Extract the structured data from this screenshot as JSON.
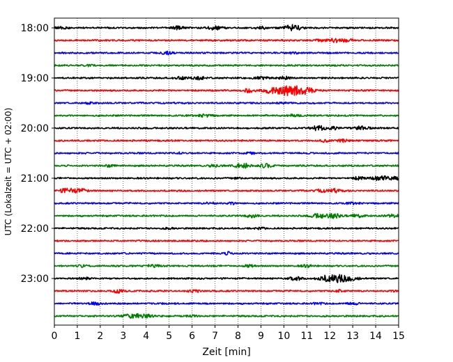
{
  "chart_data": {
    "type": "line",
    "title": "",
    "xlabel": "Zeit  [min]",
    "ylabel": "UTC (Lokalzeit = UTC + 02:00)",
    "xlim": [
      0,
      15
    ],
    "x_ticks": [
      0,
      1,
      2,
      3,
      4,
      5,
      6,
      7,
      8,
      9,
      10,
      11,
      12,
      13,
      14,
      15
    ],
    "x_tick_labels": [
      "0",
      "1",
      "2",
      "3",
      "4",
      "5",
      "6",
      "7",
      "8",
      "9",
      "10",
      "11",
      "12",
      "13",
      "14",
      "15"
    ],
    "y_ticks": [
      "18:00",
      "19:00",
      "20:00",
      "21:00",
      "22:00",
      "23:00"
    ],
    "grid": "vertical dotted lines at each minute",
    "trace_interval_minutes": 15,
    "color_cycle": [
      "#000000",
      "#ff0000",
      "#0000ff",
      "#008000"
    ],
    "series": [
      {
        "start": "18:00",
        "events": [
          [
            0.3,
            0.5
          ],
          [
            5.4,
            0.6
          ],
          [
            7.0,
            0.8
          ],
          [
            9.0,
            0.5
          ],
          [
            10.4,
            1.3
          ]
        ]
      },
      {
        "start": "18:15",
        "events": [
          [
            11.5,
            0.4
          ],
          [
            12.2,
            0.8
          ],
          [
            12.8,
            0.5
          ]
        ]
      },
      {
        "start": "18:30",
        "events": [
          [
            5.0,
            0.3
          ],
          [
            10.5,
            0.4
          ],
          [
            4.8,
            0.4
          ]
        ]
      },
      {
        "start": "18:45",
        "events": [
          [
            1.5,
            0.3
          ]
        ]
      },
      {
        "start": "19:00",
        "events": [
          [
            5.5,
            0.5
          ],
          [
            6.3,
            0.6
          ],
          [
            9.0,
            0.8
          ],
          [
            10.0,
            0.6
          ]
        ]
      },
      {
        "start": "19:15",
        "events": [
          [
            8.5,
            0.7
          ],
          [
            9.5,
            1.1
          ],
          [
            10.3,
            2.2
          ],
          [
            11.0,
            1.0
          ]
        ]
      },
      {
        "start": "19:30",
        "events": [
          [
            1.5,
            0.3
          ],
          [
            10.0,
            0.3
          ]
        ]
      },
      {
        "start": "19:45",
        "events": [
          [
            6.6,
            0.6
          ],
          [
            10.5,
            0.4
          ]
        ]
      },
      {
        "start": "20:00",
        "events": [
          [
            11.5,
            0.9
          ],
          [
            12.2,
            0.6
          ],
          [
            13.4,
            0.8
          ]
        ]
      },
      {
        "start": "20:15",
        "events": [
          [
            11.8,
            0.4
          ],
          [
            12.6,
            0.5
          ]
        ]
      },
      {
        "start": "20:30",
        "events": [
          [
            5.5,
            0.3
          ],
          [
            8.5,
            0.3
          ]
        ]
      },
      {
        "start": "20:45",
        "events": [
          [
            2.4,
            0.4
          ],
          [
            7.0,
            0.5
          ],
          [
            8.2,
            1.0
          ],
          [
            9.2,
            0.8
          ]
        ]
      },
      {
        "start": "21:00",
        "events": [
          [
            8.0,
            0.3
          ],
          [
            13.3,
            0.6
          ],
          [
            14.2,
            0.9
          ],
          [
            14.9,
            0.8
          ]
        ]
      },
      {
        "start": "21:15",
        "events": [
          [
            0.6,
            1.0
          ],
          [
            1.2,
            0.6
          ],
          [
            11.6,
            0.5
          ],
          [
            12.2,
            0.7
          ]
        ]
      },
      {
        "start": "21:30",
        "events": [
          [
            6.8,
            0.4
          ],
          [
            7.8,
            0.4
          ],
          [
            13.0,
            0.3
          ]
        ]
      },
      {
        "start": "21:45",
        "events": [
          [
            8.6,
            0.6
          ],
          [
            11.5,
            0.9
          ],
          [
            12.2,
            0.9
          ],
          [
            13.2,
            0.6
          ],
          [
            14.7,
            0.6
          ]
        ]
      },
      {
        "start": "22:00",
        "events": [
          [
            5.0,
            0.3
          ],
          [
            9.0,
            0.3
          ]
        ]
      },
      {
        "start": "22:15",
        "events": []
      },
      {
        "start": "22:30",
        "events": [
          [
            7.6,
            0.5
          ]
        ]
      },
      {
        "start": "22:45",
        "events": [
          [
            1.2,
            0.4
          ],
          [
            4.3,
            0.5
          ],
          [
            8.5,
            0.5
          ],
          [
            11.0,
            0.5
          ]
        ]
      },
      {
        "start": "23:00",
        "events": [
          [
            1.3,
            0.4
          ],
          [
            10.5,
            0.7
          ],
          [
            11.8,
            1.0
          ],
          [
            12.4,
            1.4
          ],
          [
            13.0,
            0.7
          ]
        ]
      },
      {
        "start": "23:15",
        "events": [
          [
            2.8,
            0.6
          ],
          [
            6.1,
            0.5
          ],
          [
            12.4,
            0.5
          ],
          [
            15.0,
            0.5
          ]
        ]
      },
      {
        "start": "23:30",
        "events": [
          [
            1.8,
            0.5
          ],
          [
            11.5,
            0.3
          ],
          [
            13.0,
            0.5
          ]
        ]
      },
      {
        "start": "23:45",
        "events": [
          [
            3.2,
            0.5
          ],
          [
            3.6,
            0.8
          ],
          [
            4.1,
            0.5
          ],
          [
            6.0,
            0.3
          ]
        ]
      }
    ]
  }
}
